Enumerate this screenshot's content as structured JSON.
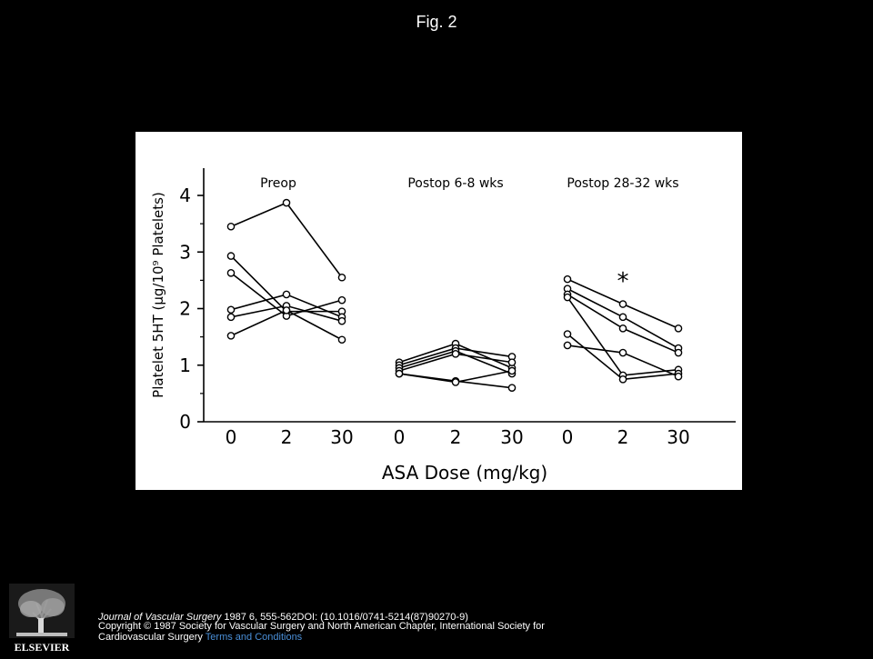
{
  "header": {
    "title": "Fig. 2"
  },
  "colors": {
    "background": "#000000",
    "panel": "#ffffff",
    "ink": "#000000",
    "link": "#4a8fd8"
  },
  "chart_data": {
    "type": "line",
    "ylabel": "Platelet 5HT (μg/10⁹ Platelets)",
    "xlabel": "ASA Dose (mg/kg)",
    "ylim": [
      0,
      4.5
    ],
    "yticks": [
      0,
      1,
      2,
      3,
      4
    ],
    "grid": false,
    "annotation": "*",
    "annotation_panel": 2,
    "annotation_dose": "2",
    "annotation_y": 2.6,
    "panels": [
      {
        "title": "Preop",
        "categories": [
          "0",
          "2",
          "30"
        ],
        "series": [
          {
            "values": [
              3.45,
              3.87,
              2.55
            ]
          },
          {
            "values": [
              2.93,
              1.95,
              1.95
            ]
          },
          {
            "values": [
              2.63,
              1.87,
              2.15
            ]
          },
          {
            "values": [
              1.98,
              2.25,
              1.85
            ]
          },
          {
            "values": [
              1.85,
              2.05,
              1.78
            ]
          },
          {
            "values": [
              1.52,
              1.97,
              1.45
            ]
          }
        ]
      },
      {
        "title": "Postop 6-8 wks",
        "categories": [
          "0",
          "2",
          "30"
        ],
        "series": [
          {
            "values": [
              1.05,
              1.38,
              0.95
            ]
          },
          {
            "values": [
              1.0,
              1.3,
              1.15
            ]
          },
          {
            "values": [
              0.95,
              1.25,
              0.85
            ]
          },
          {
            "values": [
              0.9,
              1.2,
              1.05
            ]
          },
          {
            "values": [
              0.85,
              0.72,
              0.6
            ]
          },
          {
            "values": [
              0.85,
              0.7,
              0.9
            ]
          }
        ]
      },
      {
        "title": "Postop 28-32 wks",
        "categories": [
          "0",
          "2",
          "30"
        ],
        "series": [
          {
            "values": [
              2.52,
              2.08,
              1.65
            ]
          },
          {
            "values": [
              2.35,
              1.85,
              1.3
            ]
          },
          {
            "values": [
              2.25,
              1.65,
              1.22
            ]
          },
          {
            "values": [
              2.2,
              0.82,
              0.92
            ]
          },
          {
            "values": [
              1.55,
              0.75,
              0.85
            ]
          },
          {
            "values": [
              1.35,
              1.22,
              0.8
            ]
          }
        ]
      }
    ]
  },
  "footer": {
    "journal": "Journal of Vascular Surgery",
    "citation": " 1987 6, 555-562DOI: (10.1016/0741-5214(87)90270-9)",
    "copyright_line1": "Copyright © 1987 Society for Vascular Surgery and North American Chapter, International Society for",
    "copyright_line2": "Cardiovascular Surgery ",
    "terms_link": "Terms and Conditions"
  },
  "logo": {
    "text": "ELSEVIER",
    "icon": "elsevier-tree-icon"
  }
}
